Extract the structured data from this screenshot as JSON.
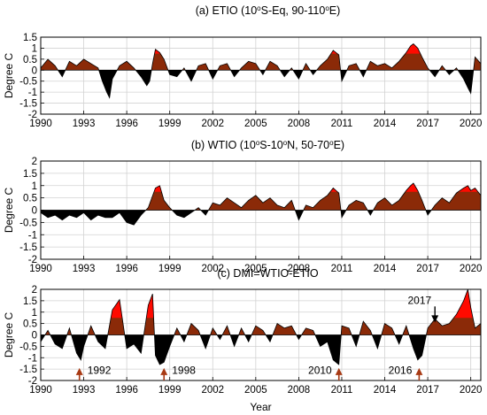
{
  "chart_data": [
    {
      "type": "area",
      "title": "(a)  ETIO (10°S-Eq, 90-110°E)",
      "title_parts": [
        "(a)  ETIO (10",
        "o",
        "S-Eq, 90-110",
        "o",
        "E)"
      ],
      "ylabel": "Degree C",
      "xlabel": "",
      "xlim": [
        1990,
        2020.7
      ],
      "ylim": [
        -2,
        1.5
      ],
      "xticks": [
        "1990",
        "1993",
        "1996",
        "1999",
        "2002",
        "2005",
        "2008",
        "2011",
        "2014",
        "2017",
        "2020"
      ],
      "yticks": [
        "1.5",
        "1",
        "0.5",
        "0",
        "-0.5",
        "-1",
        "-1.5",
        "-2"
      ],
      "grid": true,
      "colors": {
        "positive": "#8b2a08",
        "negative": "#000000",
        "highlight": "#ff0a00"
      },
      "series": [
        {
          "x": [
            1990.0,
            1990.5,
            1991.0,
            1991.5,
            1992.0,
            1992.5,
            1993.0,
            1993.5,
            1994.0,
            1994.3,
            1994.6,
            1994.8,
            1995.0,
            1995.5,
            1996.0,
            1996.5,
            1997.0,
            1997.4,
            1997.6,
            1997.8,
            1998.0,
            1998.3,
            1998.6,
            1999.0,
            1999.5,
            2000.0,
            2000.5,
            2001.0,
            2001.5,
            2002.0,
            2002.5,
            2003.0,
            2003.5,
            2004.0,
            2004.5,
            2005.0,
            2005.5,
            2006.0,
            2006.5,
            2007.0,
            2007.5,
            2008.0,
            2008.5,
            2009.0,
            2009.5,
            2010.0,
            2010.4,
            2010.8,
            2011.0,
            2011.5,
            2012.0,
            2012.5,
            2013.0,
            2013.5,
            2014.0,
            2014.5,
            2015.0,
            2015.5,
            2015.8,
            2016.0,
            2016.3,
            2016.6,
            2017.0,
            2017.5,
            2018.0,
            2018.5,
            2019.0,
            2019.5,
            2019.8,
            2020.0,
            2020.3,
            2020.7
          ],
          "values": [
            0.1,
            0.5,
            0.2,
            -0.3,
            0.4,
            0.2,
            0.5,
            0.3,
            0.1,
            -0.5,
            -1.0,
            -1.25,
            -0.4,
            0.2,
            0.4,
            0.1,
            -0.3,
            -0.7,
            -0.5,
            0.3,
            0.95,
            0.8,
            0.5,
            -0.2,
            -0.3,
            0.1,
            -0.5,
            0.2,
            0.3,
            -0.4,
            0.2,
            0.3,
            -0.3,
            0.1,
            0.4,
            0.3,
            -0.2,
            0.4,
            0.2,
            -0.3,
            0.1,
            -0.4,
            0.3,
            -0.2,
            0.2,
            0.5,
            0.9,
            0.7,
            -0.5,
            0.2,
            0.3,
            -0.3,
            0.4,
            0.2,
            0.3,
            0.1,
            0.4,
            0.8,
            1.1,
            1.2,
            1.0,
            0.6,
            0.1,
            -0.3,
            0.2,
            -0.2,
            0.1,
            -0.4,
            -0.8,
            -1.05,
            0.6,
            0.3
          ]
        }
      ]
    },
    {
      "type": "area",
      "title": "(b)  WTIO (10°S-10°N, 50-70°E)",
      "title_parts": [
        "(b)  WTIO (10",
        "o",
        "S-10",
        "o",
        "N, 50-70",
        "o",
        "E)"
      ],
      "ylabel": "Degree C",
      "xlabel": "",
      "xlim": [
        1990,
        2020.7
      ],
      "ylim": [
        -2,
        2
      ],
      "xticks": [
        "1990",
        "1993",
        "1996",
        "1999",
        "2002",
        "2005",
        "2008",
        "2011",
        "2014",
        "2017",
        "2020"
      ],
      "yticks": [
        "2",
        "1.5",
        "1",
        "0.5",
        "0",
        "-0.5",
        "-1",
        "-1.5",
        "-2"
      ],
      "grid": true,
      "colors": {
        "positive": "#8b2a08",
        "negative": "#000000",
        "highlight": "#ff0a00"
      },
      "series": [
        {
          "x": [
            1990.0,
            1990.5,
            1991.0,
            1991.5,
            1992.0,
            1992.5,
            1993.0,
            1993.5,
            1994.0,
            1994.5,
            1995.0,
            1995.5,
            1996.0,
            1996.5,
            1997.0,
            1997.5,
            1998.0,
            1998.3,
            1998.6,
            1999.0,
            1999.5,
            2000.0,
            2000.5,
            2001.0,
            2001.5,
            2002.0,
            2002.5,
            2003.0,
            2003.5,
            2004.0,
            2004.5,
            2005.0,
            2005.5,
            2006.0,
            2006.5,
            2007.0,
            2007.5,
            2008.0,
            2008.5,
            2009.0,
            2009.5,
            2010.0,
            2010.4,
            2010.8,
            2011.0,
            2011.5,
            2012.0,
            2012.5,
            2013.0,
            2013.5,
            2014.0,
            2014.5,
            2015.0,
            2015.5,
            2015.8,
            2016.0,
            2016.3,
            2016.6,
            2017.0,
            2017.5,
            2018.0,
            2018.5,
            2019.0,
            2019.5,
            2019.8,
            2020.0,
            2020.3,
            2020.7
          ],
          "values": [
            -0.1,
            -0.3,
            -0.2,
            -0.4,
            -0.2,
            -0.3,
            -0.1,
            -0.4,
            -0.2,
            -0.3,
            -0.3,
            -0.1,
            -0.5,
            -0.6,
            -0.2,
            0.1,
            0.9,
            1.0,
            0.4,
            0.1,
            -0.2,
            -0.3,
            -0.1,
            0.1,
            -0.2,
            0.3,
            0.2,
            0.5,
            0.3,
            0.1,
            0.4,
            0.6,
            0.3,
            0.5,
            0.2,
            0.1,
            0.4,
            -0.4,
            0.2,
            0.1,
            0.4,
            0.6,
            0.9,
            0.7,
            -0.3,
            0.2,
            0.4,
            0.3,
            -0.2,
            0.3,
            0.5,
            0.2,
            0.4,
            0.8,
            1.0,
            1.1,
            0.8,
            0.4,
            -0.2,
            0.2,
            0.5,
            0.3,
            0.7,
            0.9,
            1.0,
            0.8,
            0.9,
            0.6
          ]
        }
      ]
    },
    {
      "type": "area",
      "title": "(c)  DMI=WTIO-ETIO",
      "ylabel": "Degree C",
      "xlabel": "Year",
      "xlim": [
        1990,
        2020.7
      ],
      "ylim": [
        -2,
        2
      ],
      "xticks": [
        "1990",
        "1993",
        "1996",
        "1999",
        "2002",
        "2005",
        "2008",
        "2011",
        "2014",
        "2017",
        "2020"
      ],
      "yticks": [
        "2",
        "1.5",
        "1",
        "0.5",
        "0",
        "-0.5",
        "-1",
        "-1.5",
        "-2"
      ],
      "grid": true,
      "colors": {
        "positive": "#8b2a08",
        "negative": "#000000",
        "highlight": "#ff0a00",
        "arrow_up": "#a83a14",
        "arrow_down": "#000000"
      },
      "annotations": [
        {
          "label": "1992",
          "x": 1992.7,
          "direction": "up"
        },
        {
          "label": "1998",
          "x": 1998.6,
          "direction": "up"
        },
        {
          "label": "2010",
          "x": 2010.8,
          "direction": "up"
        },
        {
          "label": "2016",
          "x": 2016.4,
          "direction": "up"
        },
        {
          "label": "2017",
          "x": 2017.5,
          "direction": "down"
        }
      ],
      "series": [
        {
          "x": [
            1990.0,
            1990.5,
            1991.0,
            1991.5,
            1992.0,
            1992.5,
            1992.8,
            1993.0,
            1993.5,
            1994.0,
            1994.5,
            1995.0,
            1995.5,
            1996.0,
            1996.5,
            1997.0,
            1997.5,
            1997.8,
            1998.0,
            1998.3,
            1998.6,
            1999.0,
            1999.5,
            2000.0,
            2000.5,
            2001.0,
            2001.5,
            2002.0,
            2002.5,
            2003.0,
            2003.5,
            2004.0,
            2004.5,
            2005.0,
            2005.5,
            2006.0,
            2006.5,
            2007.0,
            2007.5,
            2008.0,
            2008.5,
            2009.0,
            2009.5,
            2010.0,
            2010.4,
            2010.8,
            2011.0,
            2011.5,
            2012.0,
            2012.5,
            2013.0,
            2013.5,
            2014.0,
            2014.5,
            2015.0,
            2015.5,
            2016.0,
            2016.3,
            2016.6,
            2017.0,
            2017.5,
            2018.0,
            2018.5,
            2019.0,
            2019.5,
            2019.8,
            2020.0,
            2020.3,
            2020.7
          ],
          "values": [
            -0.3,
            0.2,
            -0.4,
            -0.6,
            0.3,
            -0.8,
            -1.1,
            -0.5,
            0.4,
            -0.3,
            -0.6,
            1.1,
            1.55,
            -0.6,
            -0.4,
            -0.8,
            1.3,
            1.8,
            -0.9,
            -1.3,
            -1.2,
            -0.5,
            0.3,
            -0.3,
            0.5,
            0.2,
            -0.6,
            0.3,
            -0.2,
            0.4,
            -0.5,
            0.3,
            -0.3,
            0.4,
            0.2,
            -0.3,
            0.5,
            0.3,
            0.4,
            -0.2,
            0.3,
            0.2,
            -0.5,
            -0.3,
            -1.1,
            -1.3,
            0.4,
            0.3,
            -0.5,
            0.6,
            0.2,
            -0.6,
            0.5,
            0.3,
            -0.4,
            0.4,
            -0.6,
            -1.1,
            -0.9,
            0.3,
            0.7,
            0.4,
            0.5,
            0.9,
            1.5,
            2.0,
            1.2,
            0.3,
            0.5
          ]
        }
      ]
    }
  ]
}
